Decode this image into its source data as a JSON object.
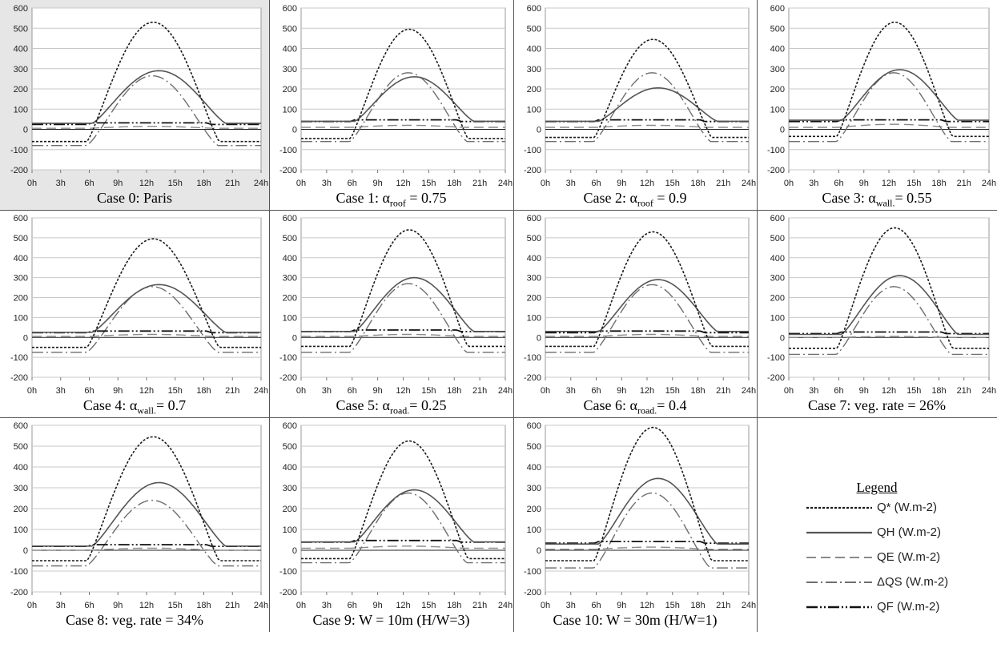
{
  "ytick_labels": [
    "600",
    "500",
    "400",
    "300",
    "200",
    "100",
    "0",
    "-100",
    "-200"
  ],
  "xtick_labels": [
    "0h",
    "3h",
    "6h",
    "9h",
    "12h",
    "15h",
    "18h",
    "21h",
    "24h"
  ],
  "colors": {
    "qstar": "#1a1a1a",
    "qh": "#555555",
    "qe": "#8a8a8a",
    "dqs": "#6e6e6e",
    "qf": "#111111",
    "zero_line": "#222222",
    "grid": "#c8c8c8",
    "highlight_panel_bg": "#e6e6e6"
  },
  "legend": {
    "title": "Legend",
    "items": [
      {
        "key": "qstar",
        "label": "Q* (W.m-2)"
      },
      {
        "key": "qh",
        "label": "QH (W.m-2)"
      },
      {
        "key": "qe",
        "label": "QE (W.m-2)"
      },
      {
        "key": "dqs",
        "label": "ΔQS (W.m-2)"
      },
      {
        "key": "qf",
        "label": "QF (W.m-2)"
      }
    ]
  },
  "chart_data": [
    {
      "type": "line",
      "caption": {
        "pre": "Case 0: Paris",
        "sub": "",
        "post": ""
      },
      "ylim": [
        -200,
        600
      ],
      "xlim": [
        0,
        24
      ],
      "params": {
        "qstar": [
          530,
          -60
        ],
        "qh": [
          290,
          30
        ],
        "qe": [
          15,
          5
        ],
        "dqs": [
          265,
          -80
        ],
        "qf": [
          30
        ]
      }
    },
    {
      "type": "line",
      "caption": {
        "pre": "Case 1: α",
        "sub": "roof",
        "post": " = 0.75"
      },
      "ylim": [
        -200,
        600
      ],
      "xlim": [
        0,
        24
      ],
      "params": {
        "qstar": [
          495,
          -45
        ],
        "qh": [
          260,
          40
        ],
        "qe": [
          20,
          10
        ],
        "dqs": [
          280,
          -60
        ],
        "qf": [
          45
        ]
      }
    },
    {
      "type": "line",
      "caption": {
        "pre": "Case 2: α",
        "sub": "roof",
        "post": " = 0.9"
      },
      "ylim": [
        -200,
        600
      ],
      "xlim": [
        0,
        24
      ],
      "params": {
        "qstar": [
          445,
          -40
        ],
        "qh": [
          205,
          40
        ],
        "qe": [
          20,
          10
        ],
        "dqs": [
          280,
          -60
        ],
        "qf": [
          45
        ]
      }
    },
    {
      "type": "line",
      "caption": {
        "pre": "Case 3: α",
        "sub": "wall.",
        "post": "= 0.55"
      },
      "ylim": [
        -200,
        600
      ],
      "xlim": [
        0,
        24
      ],
      "params": {
        "qstar": [
          530,
          -35
        ],
        "qh": [
          295,
          45
        ],
        "qe": [
          25,
          10
        ],
        "dqs": [
          280,
          -60
        ],
        "qf": [
          45
        ]
      }
    },
    {
      "type": "line",
      "caption": {
        "pre": "Case 4: α",
        "sub": "wall.",
        "post": "= 0.7"
      },
      "ylim": [
        -200,
        600
      ],
      "xlim": [
        0,
        24
      ],
      "params": {
        "qstar": [
          495,
          -50
        ],
        "qh": [
          265,
          25
        ],
        "qe": [
          15,
          5
        ],
        "dqs": [
          255,
          -75
        ],
        "qf": [
          30
        ]
      }
    },
    {
      "type": "line",
      "caption": {
        "pre": "Case 5: α",
        "sub": "road.",
        "post": "= 0.25"
      },
      "ylim": [
        -200,
        600
      ],
      "xlim": [
        0,
        24
      ],
      "params": {
        "qstar": [
          540,
          -45
        ],
        "qh": [
          300,
          30
        ],
        "qe": [
          15,
          5
        ],
        "dqs": [
          270,
          -75
        ],
        "qf": [
          35
        ]
      }
    },
    {
      "type": "line",
      "caption": {
        "pre": "Case 6: α",
        "sub": "road.",
        "post": "= 0.4"
      },
      "ylim": [
        -200,
        600
      ],
      "xlim": [
        0,
        24
      ],
      "params": {
        "qstar": [
          530,
          -45
        ],
        "qh": [
          290,
          30
        ],
        "qe": [
          15,
          5
        ],
        "dqs": [
          265,
          -75
        ],
        "qf": [
          30
        ]
      }
    },
    {
      "type": "line",
      "caption": {
        "pre": "Case 7: veg. rate = 26%",
        "sub": "",
        "post": ""
      },
      "ylim": [
        -200,
        600
      ],
      "xlim": [
        0,
        24
      ],
      "params": {
        "qstar": [
          550,
          -55
        ],
        "qh": [
          310,
          15
        ],
        "qe": [
          5,
          0
        ],
        "dqs": [
          255,
          -85
        ],
        "qf": [
          25
        ]
      }
    },
    {
      "type": "line",
      "caption": {
        "pre": "Case 8: veg. rate = 34%",
        "sub": "",
        "post": ""
      },
      "ylim": [
        -200,
        600
      ],
      "xlim": [
        0,
        24
      ],
      "params": {
        "qstar": [
          545,
          -50
        ],
        "qh": [
          325,
          20
        ],
        "qe": [
          10,
          0
        ],
        "dqs": [
          240,
          -75
        ],
        "qf": [
          25
        ]
      }
    },
    {
      "type": "line",
      "caption": {
        "pre": "Case 9: W = 10m (H/W=3)",
        "sub": "",
        "post": ""
      },
      "ylim": [
        -200,
        600
      ],
      "xlim": [
        0,
        24
      ],
      "params": {
        "qstar": [
          525,
          -40
        ],
        "qh": [
          290,
          40
        ],
        "qe": [
          20,
          10
        ],
        "dqs": [
          275,
          -60
        ],
        "qf": [
          45
        ]
      }
    },
    {
      "type": "line",
      "caption": {
        "pre": "Case 10: W = 30m (H/W=1)",
        "sub": "",
        "post": ""
      },
      "ylim": [
        -200,
        600
      ],
      "xlim": [
        0,
        24
      ],
      "params": {
        "qstar": [
          590,
          -50
        ],
        "qh": [
          345,
          30
        ],
        "qe": [
          15,
          5
        ],
        "dqs": [
          275,
          -85
        ],
        "qf": [
          40
        ]
      }
    }
  ]
}
